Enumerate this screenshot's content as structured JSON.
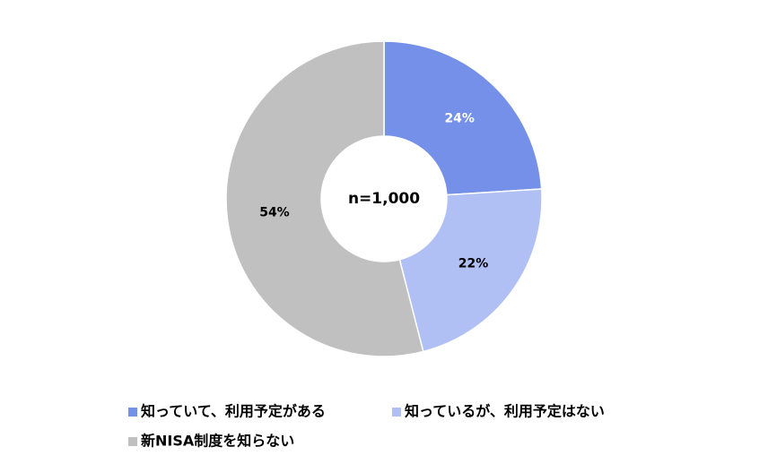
{
  "chart_data": {
    "type": "donut",
    "categories": [
      "知っていて、利用予定がある",
      "知っているが、利用予定はない",
      "新NISA制度を知らない"
    ],
    "values": [
      24,
      22,
      54
    ],
    "value_labels": [
      "24%",
      "22%",
      "54%"
    ],
    "colors": [
      "#7490e8",
      "#b0c0f5",
      "#c0c0c0"
    ],
    "label_colors": [
      "#ffffff",
      "#000000",
      "#000000"
    ],
    "center_label": "n=1,000"
  }
}
